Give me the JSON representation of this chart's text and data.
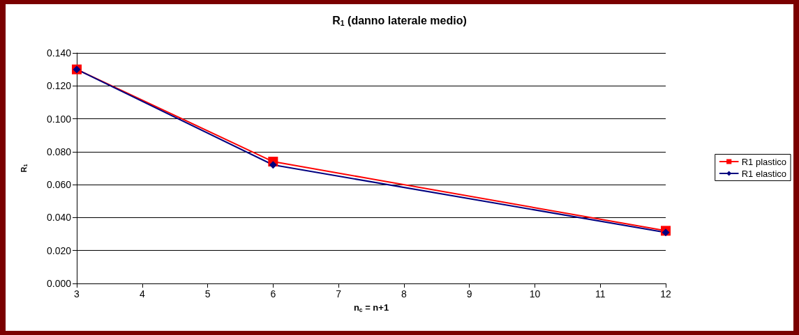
{
  "chart_data": {
    "type": "line",
    "title": "R$_{1}$ (danno laterale medio)",
    "xlabel": "n$_{c}$ = n+1",
    "ylabel": "R$_{1}$",
    "x": [
      3,
      6,
      12
    ],
    "series": [
      {
        "name": "R1 plastico",
        "color": "#ff0000",
        "values": [
          0.13,
          0.074,
          0.032
        ],
        "marker": "square"
      },
      {
        "name": "R1 elastico",
        "color": "#000080",
        "values": [
          0.13,
          0.072,
          0.031
        ],
        "marker": "diamond"
      }
    ],
    "xlim": [
      3,
      12
    ],
    "xticks": [
      3,
      4,
      5,
      6,
      7,
      8,
      9,
      10,
      11,
      12
    ],
    "ylim": [
      0,
      0.14
    ],
    "yticks": [
      {
        "value": 0,
        "label": "0.000"
      },
      {
        "value": 0.02,
        "label": "0.020"
      },
      {
        "value": 0.04,
        "label": "0.040"
      },
      {
        "value": 0.06,
        "label": "0.060"
      },
      {
        "value": 0.08,
        "label": "0.080"
      },
      {
        "value": 0.1,
        "label": "0.100"
      },
      {
        "value": 0.12,
        "label": "0.120"
      },
      {
        "value": 0.14,
        "label": "0.140"
      }
    ],
    "grid": "y",
    "legend": "right",
    "line_style": "solid"
  }
}
